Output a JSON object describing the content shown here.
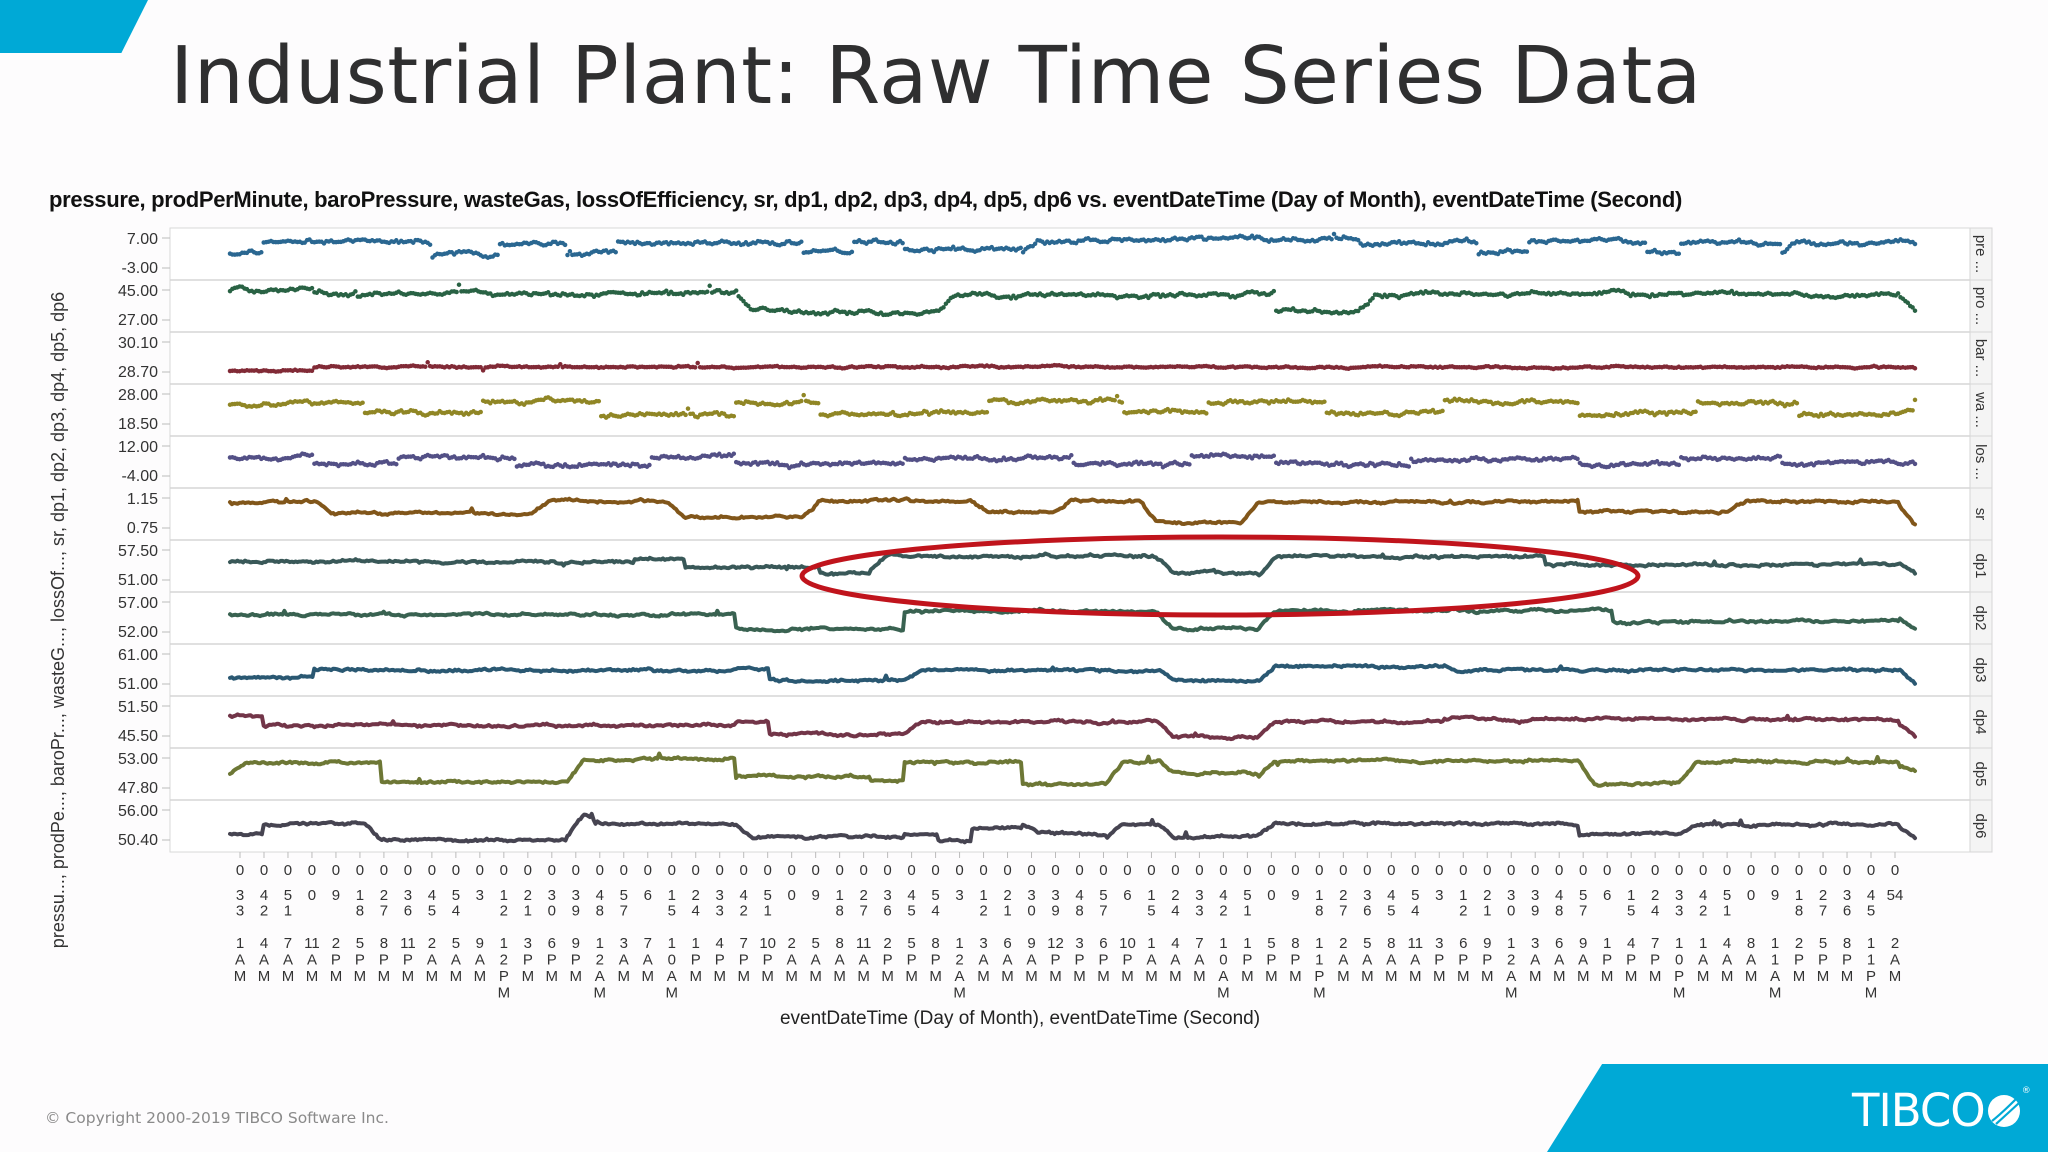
{
  "slide": {
    "title": "Industrial Plant: Raw Time Series Data",
    "footer_copyright": "© Copyright 2000-2019 TIBCO Software Inc.",
    "logo_text": "TIBCO",
    "logo_registered": "®",
    "accent_color": "#00a9d6"
  },
  "chart_data": {
    "type": "scatter",
    "title": "pressure, prodPerMinute, baroPressure, wasteGas, lossOfEfficiency, sr, dp1, dp2, dp3, dp4, dp5, dp6 vs. eventDateTime (Day of Month), eventDateTime (Second)",
    "xlabel": "eventDateTime (Day of Month), eventDateTime (Second)",
    "ylabel": "pressu..., prodPe..., baroPr..., wasteG..., lossOf..., sr, dp1, dp2, dp3, dp4, dp5, dp6",
    "layout": "trellis-rows",
    "grid": true,
    "annotation": {
      "shape": "ellipse",
      "color": "#c0141c",
      "panel": "dp1",
      "description": "highlighted region on dp1 panel"
    },
    "series": [
      {
        "name": "pressure",
        "trellis_label": "pre ...",
        "color": "#1f5f8b",
        "ylim": [
          -3.0,
          7.0
        ],
        "tick_labels": [
          "7.00",
          "-3.00"
        ],
        "levels": [
          [
            0,
            2.2
          ],
          [
            0.02,
            5.5
          ],
          [
            0.1,
            5.5
          ],
          [
            0.12,
            2.0
          ],
          [
            0.16,
            5.0
          ],
          [
            0.2,
            2.2
          ],
          [
            0.23,
            5.3
          ],
          [
            0.34,
            2.3
          ],
          [
            0.37,
            5.5
          ],
          [
            0.4,
            3.5
          ],
          [
            0.47,
            2.2
          ],
          [
            0.48,
            5.6
          ],
          [
            0.57,
            6.0
          ],
          [
            0.67,
            5.2
          ],
          [
            0.74,
            2.5
          ],
          [
            0.77,
            5.3
          ],
          [
            0.84,
            2.5
          ],
          [
            0.86,
            5.2
          ],
          [
            0.92,
            2.5
          ],
          [
            0.93,
            5.2
          ],
          [
            1.0,
            5.0
          ]
        ]
      },
      {
        "name": "prodPerMinute",
        "trellis_label": "pro ...",
        "color": "#1e5a3a",
        "ylim": [
          27.0,
          45.0
        ],
        "tick_labels": [
          "45.00",
          "27.00"
        ],
        "levels": [
          [
            0,
            44
          ],
          [
            0.05,
            42
          ],
          [
            0.27,
            43
          ],
          [
            0.3,
            43.5
          ],
          [
            0.31,
            34
          ],
          [
            0.34,
            33
          ],
          [
            0.42,
            33
          ],
          [
            0.43,
            41.5
          ],
          [
            0.6,
            42
          ],
          [
            0.62,
            33
          ],
          [
            0.67,
            33
          ],
          [
            0.68,
            42
          ],
          [
            0.99,
            42
          ],
          [
            1.0,
            34
          ]
        ]
      },
      {
        "name": "baroPressure",
        "trellis_label": "bar ...",
        "color": "#7a1f2b",
        "ylim": [
          28.7,
          30.1
        ],
        "tick_labels": [
          "30.10",
          "28.70"
        ],
        "levels": [
          [
            0,
            28.9
          ],
          [
            0.05,
            29.05
          ],
          [
            1.0,
            29.0
          ]
        ]
      },
      {
        "name": "wasteGas",
        "trellis_label": "wa ...",
        "color": "#8a8019",
        "ylim": [
          18.5,
          28.0
        ],
        "tick_labels": [
          "28.00",
          "18.50"
        ],
        "levels": [
          [
            0,
            25
          ],
          [
            0.08,
            22.5
          ],
          [
            0.15,
            25.5
          ],
          [
            0.22,
            22
          ],
          [
            0.3,
            25.5
          ],
          [
            0.35,
            22.5
          ],
          [
            0.45,
            25.5
          ],
          [
            0.53,
            22.5
          ],
          [
            0.58,
            25.5
          ],
          [
            0.65,
            22.5
          ],
          [
            0.72,
            25.5
          ],
          [
            0.8,
            22.5
          ],
          [
            0.87,
            25.5
          ],
          [
            0.93,
            22.5
          ],
          [
            1.0,
            25
          ]
        ]
      },
      {
        "name": "lossOfEfficiency",
        "trellis_label": "los ...",
        "color": "#4a4780",
        "ylim": [
          -4.0,
          12.0
        ],
        "tick_labels": [
          "12.00",
          "-4.00"
        ],
        "levels": [
          [
            0,
            6
          ],
          [
            0.05,
            3
          ],
          [
            0.1,
            6
          ],
          [
            0.17,
            2.5
          ],
          [
            0.25,
            6.5
          ],
          [
            0.3,
            3
          ],
          [
            0.4,
            6
          ],
          [
            0.5,
            3
          ],
          [
            0.57,
            6.5
          ],
          [
            0.62,
            3
          ],
          [
            0.7,
            5.5
          ],
          [
            0.8,
            3
          ],
          [
            0.86,
            6
          ],
          [
            0.92,
            3.5
          ],
          [
            1.0,
            3
          ]
        ]
      },
      {
        "name": "sr",
        "trellis_label": "sr",
        "color": "#7a4d0e",
        "ylim": [
          0.75,
          1.15
        ],
        "tick_labels": [
          "1.15",
          "0.75"
        ],
        "levels": [
          [
            0,
            1.08
          ],
          [
            0.05,
            1.1
          ],
          [
            0.06,
            0.96
          ],
          [
            0.18,
            0.96
          ],
          [
            0.19,
            1.1
          ],
          [
            0.26,
            1.1
          ],
          [
            0.27,
            0.92
          ],
          [
            0.34,
            0.92
          ],
          [
            0.35,
            1.09
          ],
          [
            0.44,
            1.08
          ],
          [
            0.45,
            0.97
          ],
          [
            0.49,
            0.97
          ],
          [
            0.5,
            1.1
          ],
          [
            0.54,
            1.1
          ],
          [
            0.55,
            0.85
          ],
          [
            0.6,
            0.85
          ],
          [
            0.61,
            1.08
          ],
          [
            0.75,
            1.09
          ],
          [
            0.8,
            0.97
          ],
          [
            0.89,
            0.97
          ],
          [
            0.9,
            1.09
          ],
          [
            0.99,
            1.07
          ],
          [
            1.0,
            0.82
          ]
        ]
      },
      {
        "name": "dp1",
        "trellis_label": "dp1",
        "color": "#2e4f4f",
        "ylim": [
          51.0,
          57.5
        ],
        "tick_labels": [
          "57.50",
          "51.00"
        ],
        "levels": [
          [
            0,
            55
          ],
          [
            0.24,
            55.5
          ],
          [
            0.27,
            54
          ],
          [
            0.35,
            53
          ],
          [
            0.38,
            53.5
          ],
          [
            0.39,
            56
          ],
          [
            0.55,
            56
          ],
          [
            0.56,
            53
          ],
          [
            0.61,
            52.5
          ],
          [
            0.62,
            56
          ],
          [
            0.75,
            56
          ],
          [
            0.78,
            54.5
          ],
          [
            0.99,
            55
          ],
          [
            1.0,
            53
          ]
        ]
      },
      {
        "name": "dp2",
        "trellis_label": "dp2",
        "color": "#2e5a48",
        "ylim": [
          52.0,
          57.0
        ],
        "tick_labels": [
          "57.00",
          "52.00"
        ],
        "levels": [
          [
            0,
            55
          ],
          [
            0.28,
            55
          ],
          [
            0.3,
            53
          ],
          [
            0.38,
            53
          ],
          [
            0.4,
            55.5
          ],
          [
            0.55,
            55.5
          ],
          [
            0.56,
            53
          ],
          [
            0.61,
            53
          ],
          [
            0.62,
            55.5
          ],
          [
            0.8,
            55.5
          ],
          [
            0.82,
            54
          ],
          [
            0.99,
            54.5
          ],
          [
            1.0,
            53
          ]
        ]
      },
      {
        "name": "dp3",
        "trellis_label": "dp3",
        "color": "#1f4f6a",
        "ylim": [
          51.0,
          61.0
        ],
        "tick_labels": [
          "61.00",
          "51.00"
        ],
        "levels": [
          [
            0,
            54
          ],
          [
            0.05,
            56
          ],
          [
            0.3,
            56
          ],
          [
            0.32,
            53
          ],
          [
            0.4,
            53
          ],
          [
            0.41,
            56
          ],
          [
            0.55,
            56.5
          ],
          [
            0.56,
            53
          ],
          [
            0.61,
            53
          ],
          [
            0.62,
            57
          ],
          [
            0.72,
            58
          ],
          [
            0.73,
            56
          ],
          [
            0.99,
            56.5
          ],
          [
            1.0,
            52.5
          ]
        ]
      },
      {
        "name": "dp4",
        "trellis_label": "dp4",
        "color": "#6a2a3e",
        "ylim": [
          45.5,
          51.5
        ],
        "tick_labels": [
          "51.50",
          "45.50"
        ],
        "levels": [
          [
            0,
            49.5
          ],
          [
            0.02,
            48
          ],
          [
            0.3,
            48.5
          ],
          [
            0.32,
            46.5
          ],
          [
            0.4,
            46.5
          ],
          [
            0.41,
            48.5
          ],
          [
            0.55,
            48.5
          ],
          [
            0.56,
            46
          ],
          [
            0.61,
            46
          ],
          [
            0.62,
            48.5
          ],
          [
            0.72,
            49
          ],
          [
            0.99,
            48.5
          ],
          [
            1.0,
            46.5
          ]
        ]
      },
      {
        "name": "dp5",
        "trellis_label": "dp5",
        "color": "#65702a",
        "ylim": [
          47.8,
          53.0
        ],
        "tick_labels": [
          "53.00",
          "47.80"
        ],
        "levels": [
          [
            0,
            50.5
          ],
          [
            0.01,
            52
          ],
          [
            0.07,
            52
          ],
          [
            0.09,
            49.2
          ],
          [
            0.2,
            49
          ],
          [
            0.21,
            52.5
          ],
          [
            0.28,
            52.5
          ],
          [
            0.3,
            50
          ],
          [
            0.38,
            49.5
          ],
          [
            0.4,
            52
          ],
          [
            0.45,
            52.2
          ],
          [
            0.47,
            49
          ],
          [
            0.52,
            49
          ],
          [
            0.53,
            52.2
          ],
          [
            0.55,
            52.5
          ],
          [
            0.56,
            50.5
          ],
          [
            0.61,
            50
          ],
          [
            0.62,
            52.3
          ],
          [
            0.8,
            52.2
          ],
          [
            0.81,
            49
          ],
          [
            0.86,
            49
          ],
          [
            0.87,
            52.2
          ],
          [
            0.99,
            51.5
          ],
          [
            1.0,
            51
          ]
        ]
      },
      {
        "name": "dp6",
        "trellis_label": "dp6",
        "color": "#3c3a48",
        "ylim": [
          50.4,
          56.0
        ],
        "tick_labels": [
          "56.00",
          "50.40"
        ],
        "levels": [
          [
            0,
            52
          ],
          [
            0.02,
            53.5
          ],
          [
            0.08,
            53.5
          ],
          [
            0.09,
            51
          ],
          [
            0.2,
            51.5
          ],
          [
            0.21,
            55
          ],
          [
            0.22,
            53.5
          ],
          [
            0.3,
            53.5
          ],
          [
            0.31,
            51.5
          ],
          [
            0.4,
            52
          ],
          [
            0.42,
            51
          ],
          [
            0.44,
            53
          ],
          [
            0.47,
            53.5
          ],
          [
            0.48,
            52
          ],
          [
            0.52,
            51.5
          ],
          [
            0.53,
            53.5
          ],
          [
            0.55,
            53.8
          ],
          [
            0.56,
            51.5
          ],
          [
            0.61,
            51.5
          ],
          [
            0.62,
            53.5
          ],
          [
            0.77,
            53.5
          ],
          [
            0.8,
            52
          ],
          [
            0.86,
            52
          ],
          [
            0.87,
            53.5
          ],
          [
            0.99,
            53
          ],
          [
            1.0,
            51.5
          ]
        ]
      }
    ],
    "x_ticks": [
      [
        "0",
        "33",
        "1 AM"
      ],
      [
        "0",
        "42",
        "4 AM"
      ],
      [
        "0",
        "51",
        "7 AM"
      ],
      [
        "0",
        "0",
        "11 AM"
      ],
      [
        "0",
        "9",
        "2 PM"
      ],
      [
        "0",
        "18",
        "5 PM"
      ],
      [
        "0",
        "27",
        "8 PM"
      ],
      [
        "0",
        "36",
        "11 PM"
      ],
      [
        "0",
        "45",
        "2 AM"
      ],
      [
        "0",
        "54",
        "5 AM"
      ],
      [
        "0",
        "3",
        "9 AM"
      ],
      [
        "0",
        "12",
        "12 PM"
      ],
      [
        "0",
        "21",
        "3 PM"
      ],
      [
        "0",
        "30",
        "6 PM"
      ],
      [
        "0",
        "39",
        "9 PM"
      ],
      [
        "0",
        "48",
        "12 AM"
      ],
      [
        "0",
        "57",
        "3 AM"
      ],
      [
        "0",
        "6",
        "7 AM"
      ],
      [
        "0",
        "15",
        "10 AM"
      ],
      [
        "0",
        "24",
        "1 PM"
      ],
      [
        "0",
        "33",
        "4 PM"
      ],
      [
        "0",
        "42",
        "7 PM"
      ],
      [
        "0",
        "51",
        "10 PM"
      ],
      [
        "0",
        "0",
        "2 AM"
      ],
      [
        "0",
        "9",
        "5 AM"
      ],
      [
        "0",
        "18",
        "8 AM"
      ],
      [
        "0",
        "27",
        "11 AM"
      ],
      [
        "0",
        "36",
        "2 PM"
      ],
      [
        "0",
        "45",
        "5 PM"
      ],
      [
        "0",
        "54",
        "8 PM"
      ],
      [
        "0",
        "3",
        "12 AM"
      ],
      [
        "0",
        "12",
        "3 AM"
      ],
      [
        "0",
        "21",
        "6 AM"
      ],
      [
        "0",
        "30",
        "9 AM"
      ],
      [
        "0",
        "39",
        "12 PM"
      ],
      [
        "0",
        "48",
        "3 PM"
      ],
      [
        "0",
        "57",
        "6 PM"
      ],
      [
        "0",
        "6",
        "10 PM"
      ],
      [
        "0",
        "15",
        "1 AM"
      ],
      [
        "0",
        "24",
        "4 AM"
      ],
      [
        "0",
        "33",
        "7 AM"
      ],
      [
        "0",
        "42",
        "10 AM"
      ],
      [
        "0",
        "51",
        "1 PM"
      ],
      [
        "0",
        "0",
        "5 PM"
      ],
      [
        "0",
        "9",
        "8 PM"
      ],
      [
        "0",
        "18",
        "11 PM"
      ],
      [
        "0",
        "27",
        "2 AM"
      ],
      [
        "0",
        "36",
        "5 AM"
      ],
      [
        "0",
        "45",
        "8 AM"
      ],
      [
        "0",
        "54",
        "11 AM"
      ],
      [
        "0",
        "3",
        "3 PM"
      ],
      [
        "0",
        "12",
        "6 PM"
      ],
      [
        "0",
        "21",
        "9 PM"
      ],
      [
        "0",
        "30",
        "12 AM"
      ],
      [
        "0",
        "39",
        "3 AM"
      ],
      [
        "0",
        "48",
        "6 AM"
      ],
      [
        "0",
        "57",
        "9 AM"
      ],
      [
        "0",
        "6",
        "1 PM"
      ],
      [
        "0",
        "15",
        "4 PM"
      ],
      [
        "0",
        "24",
        "7 PM"
      ],
      [
        "0",
        "33",
        "10 PM"
      ],
      [
        "0",
        "42",
        "1 AM"
      ],
      [
        "0",
        "51",
        "4 AM"
      ],
      [
        "0",
        "0",
        "8 AM"
      ],
      [
        "0",
        "9",
        "11 AM"
      ],
      [
        "0",
        "18",
        "2 PM"
      ],
      [
        "0",
        "27",
        "5 PM"
      ],
      [
        "0",
        "36",
        "8 PM"
      ],
      [
        "0",
        "45",
        "11 PM"
      ],
      [
        "0",
        "54",
        "2 AM"
      ]
    ]
  }
}
